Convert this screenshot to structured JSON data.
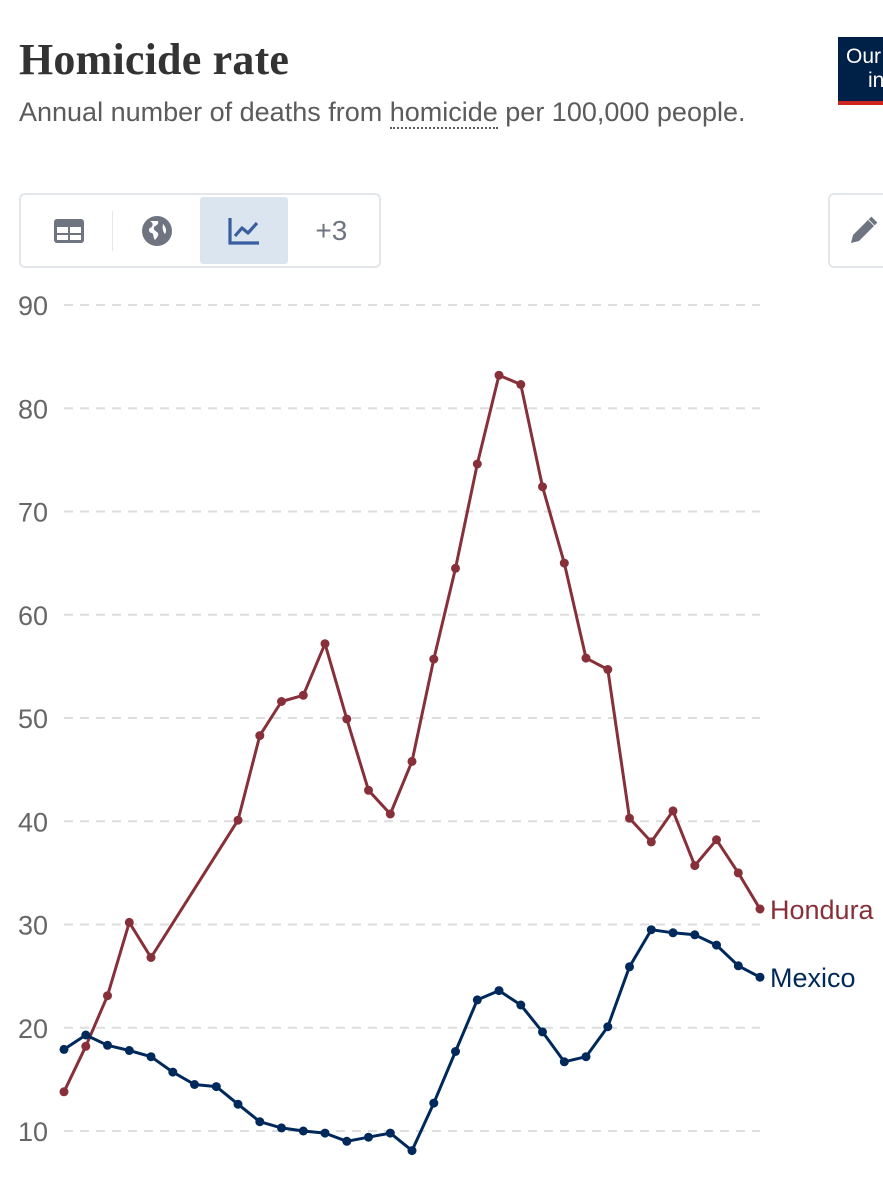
{
  "header": {
    "title": "Homicide rate",
    "subtitle_before": "Annual number of deaths from ",
    "subtitle_link": "homicide",
    "subtitle_after": " per 100,000 people.",
    "logo_line1": "Our",
    "logo_line2": "in"
  },
  "tabs": [
    {
      "name": "table",
      "icon": "table-icon"
    },
    {
      "name": "map",
      "icon": "globe-icon"
    },
    {
      "name": "chart",
      "icon": "line-chart-icon",
      "active": true
    },
    {
      "name": "more",
      "label": "+3"
    }
  ],
  "edit": {
    "icon": "pencil-icon"
  },
  "chart_data": {
    "type": "line",
    "title": "Homicide rate",
    "xlabel": "",
    "ylabel": "",
    "ylim": [
      5,
      90
    ],
    "yticks": [
      10,
      20,
      30,
      40,
      50,
      60,
      70,
      80,
      90
    ],
    "grid": true,
    "legend": "inline-right",
    "series": [
      {
        "name": "Honduras",
        "label_text": "Hondura",
        "color": "#883039",
        "points": [
          [
            0,
            13.8
          ],
          [
            1,
            18.2
          ],
          [
            2,
            23.1
          ],
          [
            3,
            30.2
          ],
          [
            4,
            26.8
          ],
          [
            8,
            40.1
          ],
          [
            9,
            48.3
          ],
          [
            10,
            51.6
          ],
          [
            11,
            52.2
          ],
          [
            12,
            57.2
          ],
          [
            13,
            49.9
          ],
          [
            14,
            43.0
          ],
          [
            15,
            40.7
          ],
          [
            16,
            45.8
          ],
          [
            17,
            55.7
          ],
          [
            18,
            64.5
          ],
          [
            19,
            74.6
          ],
          [
            20,
            83.2
          ],
          [
            21,
            82.3
          ],
          [
            22,
            72.4
          ],
          [
            23,
            65.0
          ],
          [
            24,
            55.8
          ],
          [
            25,
            54.7
          ],
          [
            26,
            40.3
          ],
          [
            27,
            38.0
          ],
          [
            28,
            41.0
          ],
          [
            29,
            35.7
          ],
          [
            30,
            38.2
          ],
          [
            31,
            35.0
          ],
          [
            32,
            31.5
          ]
        ]
      },
      {
        "name": "Mexico",
        "label_text": "Mexico",
        "color": "#00295b",
        "points": [
          [
            0,
            17.9
          ],
          [
            1,
            19.3
          ],
          [
            2,
            18.3
          ],
          [
            3,
            17.8
          ],
          [
            4,
            17.2
          ],
          [
            5,
            15.7
          ],
          [
            6,
            14.5
          ],
          [
            7,
            14.3
          ],
          [
            8,
            12.6
          ],
          [
            9,
            10.9
          ],
          [
            10,
            10.3
          ],
          [
            11,
            10.0
          ],
          [
            12,
            9.8
          ],
          [
            13,
            9.0
          ],
          [
            14,
            9.4
          ],
          [
            15,
            9.8
          ],
          [
            16,
            8.1
          ],
          [
            17,
            12.7
          ],
          [
            18,
            17.7
          ],
          [
            19,
            22.7
          ],
          [
            20,
            23.6
          ],
          [
            21,
            22.2
          ],
          [
            22,
            19.6
          ],
          [
            23,
            16.7
          ],
          [
            24,
            17.2
          ],
          [
            25,
            20.1
          ],
          [
            26,
            25.9
          ],
          [
            27,
            29.5
          ],
          [
            28,
            29.2
          ],
          [
            29,
            29.0
          ],
          [
            30,
            28.0
          ],
          [
            31,
            26.0
          ],
          [
            32,
            24.9
          ]
        ]
      }
    ]
  }
}
